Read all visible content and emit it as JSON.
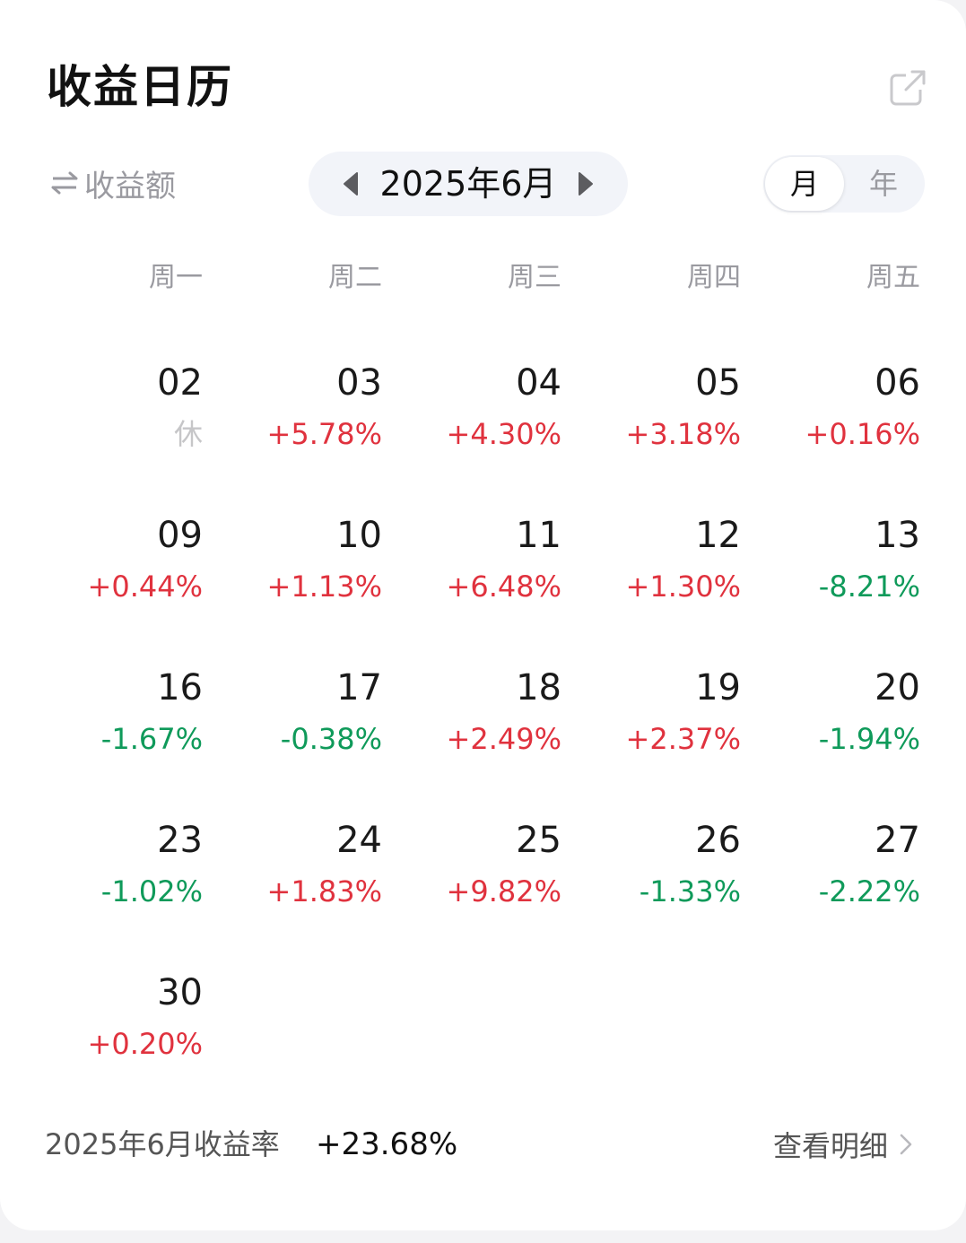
{
  "header": {
    "title": "收益日历",
    "share_icon": "share-icon"
  },
  "controls": {
    "metric_toggle_label": "收益额",
    "swap_icon": "swap-arrows-icon",
    "month_label": "2025年6月",
    "prev_icon": "triangle-left-icon",
    "next_icon": "triangle-right-icon",
    "view_options": [
      {
        "label": "月",
        "active": true
      },
      {
        "label": "年",
        "active": false
      }
    ]
  },
  "weekdays": [
    "周一",
    "周二",
    "周三",
    "周四",
    "周五"
  ],
  "days": [
    {
      "day": "02",
      "value": "休",
      "trend": "off"
    },
    {
      "day": "03",
      "value": "+5.78%",
      "trend": "up"
    },
    {
      "day": "04",
      "value": "+4.30%",
      "trend": "up"
    },
    {
      "day": "05",
      "value": "+3.18%",
      "trend": "up"
    },
    {
      "day": "06",
      "value": "+0.16%",
      "trend": "up"
    },
    {
      "day": "09",
      "value": "+0.44%",
      "trend": "up"
    },
    {
      "day": "10",
      "value": "+1.13%",
      "trend": "up"
    },
    {
      "day": "11",
      "value": "+6.48%",
      "trend": "up"
    },
    {
      "day": "12",
      "value": "+1.30%",
      "trend": "up"
    },
    {
      "day": "13",
      "value": "-8.21%",
      "trend": "down"
    },
    {
      "day": "16",
      "value": "-1.67%",
      "trend": "down"
    },
    {
      "day": "17",
      "value": "-0.38%",
      "trend": "down"
    },
    {
      "day": "18",
      "value": "+2.49%",
      "trend": "up"
    },
    {
      "day": "19",
      "value": "+2.37%",
      "trend": "up"
    },
    {
      "day": "20",
      "value": "-1.94%",
      "trend": "down"
    },
    {
      "day": "23",
      "value": "-1.02%",
      "trend": "down"
    },
    {
      "day": "24",
      "value": "+1.83%",
      "trend": "up"
    },
    {
      "day": "25",
      "value": "+9.82%",
      "trend": "up"
    },
    {
      "day": "26",
      "value": "-1.33%",
      "trend": "down"
    },
    {
      "day": "27",
      "value": "-2.22%",
      "trend": "down"
    },
    {
      "day": "30",
      "value": "+0.20%",
      "trend": "up"
    }
  ],
  "footer": {
    "label": "2025年6月收益率",
    "value": "+23.68%",
    "details_label": "查看明细",
    "details_icon": "chevron-right-icon"
  },
  "colors": {
    "up": "#e0323e",
    "down": "#0f9a5a",
    "off": "#c6c6c8"
  }
}
